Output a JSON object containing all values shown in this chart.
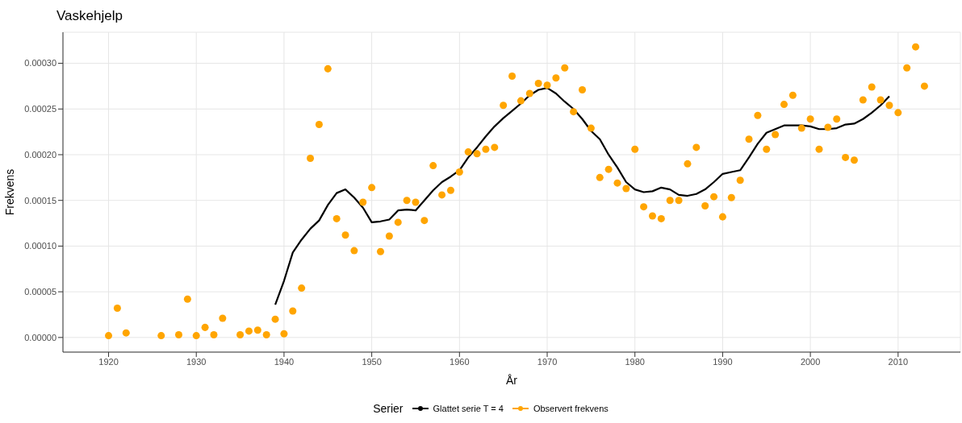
{
  "chart_data": {
    "type": "scatter",
    "title": "Vaskehjelp",
    "xlabel": "År",
    "ylabel": "Frekvens",
    "legend_title": "Serier",
    "legend": "bottom",
    "grid": true,
    "xlim": [
      1914.8,
      2017.1
    ],
    "xticks": [
      1920,
      1930,
      1940,
      1950,
      1960,
      1970,
      1980,
      1990,
      2000,
      2010
    ],
    "ylim": [
      -1.6e-05,
      0.000334
    ],
    "yticks": [
      {
        "value": 0,
        "label": "0.00000"
      },
      {
        "value": 5e-05,
        "label": "0.00005"
      },
      {
        "value": 0.0001,
        "label": "0.00010"
      },
      {
        "value": 0.00015,
        "label": "0.00015"
      },
      {
        "value": 0.0002,
        "label": "0.00020"
      },
      {
        "value": 0.00025,
        "label": "0.00025"
      },
      {
        "value": 0.0003,
        "label": "0.00030"
      }
    ],
    "series": [
      {
        "name": "Glattet serie T = 4",
        "type": "line",
        "marker": "none",
        "line_style": "solid",
        "color": "#000000",
        "x": [
          1939,
          1940,
          1941,
          1942,
          1943,
          1944,
          1945,
          1946,
          1947,
          1948,
          1949,
          1950,
          1951,
          1952,
          1953,
          1954,
          1955,
          1956,
          1957,
          1958,
          1959,
          1960,
          1961,
          1962,
          1963,
          1964,
          1965,
          1966,
          1967,
          1968,
          1969,
          1970,
          1971,
          1972,
          1973,
          1974,
          1975,
          1976,
          1977,
          1978,
          1979,
          1980,
          1981,
          1982,
          1983,
          1984,
          1985,
          1986,
          1987,
          1988,
          1989,
          1990,
          1991,
          1992,
          1993,
          1994,
          1995,
          1996,
          1997,
          1998,
          1999,
          2000,
          2001,
          2002,
          2003,
          2004,
          2005,
          2006,
          2007,
          2008,
          2009
        ],
        "values": [
          3.6e-05,
          6.2e-05,
          9.3e-05,
          0.000107,
          0.000119,
          0.000128,
          0.000145,
          0.000158,
          0.000162,
          0.000153,
          0.000142,
          0.000126,
          0.000127,
          0.000129,
          0.000139,
          0.00014,
          0.000139,
          0.00015,
          0.000161,
          0.00017,
          0.000176,
          0.000183,
          0.000197,
          0.000208,
          0.00022,
          0.000231,
          0.00024,
          0.000248,
          0.000256,
          0.000265,
          0.000271,
          0.000273,
          0.000267,
          0.000258,
          0.00025,
          0.000239,
          0.000226,
          0.000217,
          0.0002,
          0.000186,
          0.00017,
          0.000162,
          0.000159,
          0.00016,
          0.000164,
          0.000162,
          0.000156,
          0.000155,
          0.000157,
          0.000162,
          0.00017,
          0.000179,
          0.000181,
          0.000183,
          0.000197,
          0.000212,
          0.000224,
          0.000228,
          0.000232,
          0.000232,
          0.000232,
          0.000231,
          0.000228,
          0.000228,
          0.000229,
          0.000233,
          0.000234,
          0.000239,
          0.000246,
          0.000254,
          0.000264
        ]
      },
      {
        "name": "Observert frekvens",
        "marker": "circle",
        "color": "#ffa500",
        "x": [
          1920,
          1921,
          1922,
          1926,
          1928,
          1929,
          1930,
          1931,
          1932,
          1933,
          1935,
          1936,
          1937,
          1938,
          1939,
          1940,
          1941,
          1942,
          1943,
          1944,
          1945,
          1946,
          1947,
          1948,
          1949,
          1950,
          1951,
          1952,
          1953,
          1954,
          1955,
          1956,
          1957,
          1958,
          1959,
          1960,
          1961,
          1962,
          1963,
          1964,
          1965,
          1966,
          1967,
          1968,
          1969,
          1970,
          1971,
          1972,
          1973,
          1974,
          1975,
          1976,
          1977,
          1978,
          1979,
          1980,
          1981,
          1982,
          1983,
          1984,
          1985,
          1986,
          1987,
          1988,
          1989,
          1990,
          1991,
          1992,
          1993,
          1994,
          1995,
          1996,
          1997,
          1998,
          1999,
          2000,
          2001,
          2002,
          2003,
          2004,
          2005,
          2006,
          2007,
          2008,
          2009,
          2010,
          2011,
          2012,
          2013
        ],
        "values": [
          2e-06,
          3.2e-05,
          5e-06,
          2e-06,
          3e-06,
          4.2e-05,
          2e-06,
          1.1e-05,
          3e-06,
          2.1e-05,
          3e-06,
          7e-06,
          8e-06,
          3e-06,
          2e-05,
          4e-06,
          2.9e-05,
          5.4e-05,
          0.000196,
          0.000233,
          0.000294,
          0.00013,
          0.000112,
          9.5e-05,
          0.000148,
          0.000164,
          9.4e-05,
          0.000111,
          0.000126,
          0.00015,
          0.000148,
          0.000128,
          0.000188,
          0.000156,
          0.000161,
          0.000181,
          0.000203,
          0.000201,
          0.000206,
          0.000208,
          0.000254,
          0.000286,
          0.000259,
          0.000267,
          0.000278,
          0.000276,
          0.000284,
          0.000295,
          0.000247,
          0.000271,
          0.000229,
          0.000175,
          0.000184,
          0.000169,
          0.000163,
          0.000206,
          0.000143,
          0.000133,
          0.00013,
          0.00015,
          0.00015,
          0.00019,
          0.000208,
          0.000144,
          0.000154,
          0.000132,
          0.000153,
          0.000172,
          0.000217,
          0.000243,
          0.000206,
          0.000222,
          0.000255,
          0.000265,
          0.000229,
          0.000239,
          0.000206,
          0.00023,
          0.000239,
          0.000197,
          0.000194,
          0.00026,
          0.000274,
          0.00026,
          0.000254,
          0.000246,
          0.000295,
          0.000318,
          0.000275
        ]
      }
    ]
  }
}
